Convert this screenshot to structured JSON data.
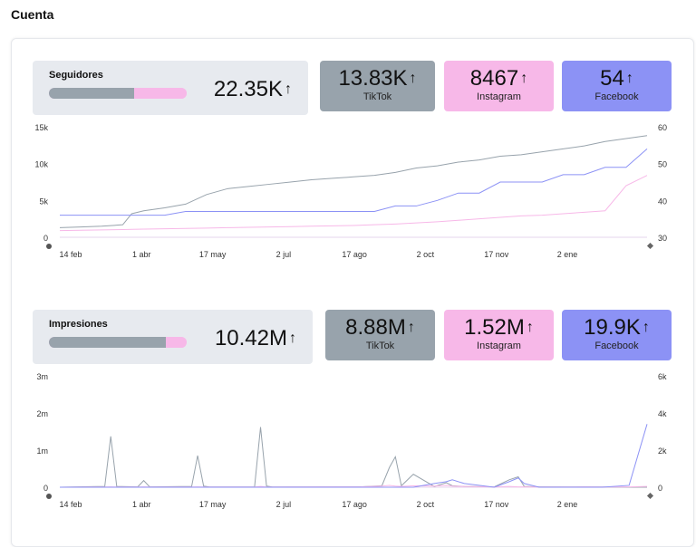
{
  "page": {
    "title": "Cuenta"
  },
  "colors": {
    "tiktok": "#98a3ac",
    "instagram": "#f7b8e8",
    "facebook": "#8c92f5",
    "panel": "#e7eaef"
  },
  "sections": [
    {
      "label": "Seguidores",
      "total": "22.35K",
      "trend_icon": "arrow-up-icon",
      "share": [
        0.62,
        0.38,
        0.0
      ],
      "tiles": [
        {
          "value": "13.83K",
          "label": "TikTok"
        },
        {
          "value": "8467",
          "label": "Instagram"
        },
        {
          "value": "54",
          "label": "Facebook"
        }
      ]
    },
    {
      "label": "Impresiones",
      "total": "10.42M",
      "trend_icon": "arrow-up-icon",
      "share": [
        0.85,
        0.15,
        0.0
      ],
      "tiles": [
        {
          "value": "8.88M",
          "label": "TikTok"
        },
        {
          "value": "1.52M",
          "label": "Instagram"
        },
        {
          "value": "19.9K",
          "label": "Facebook"
        }
      ]
    }
  ],
  "chart_data": [
    {
      "type": "line",
      "x_ticks": [
        "14 feb",
        "1 abr",
        "17 may",
        "2 jul",
        "17 ago",
        "2 oct",
        "17 nov",
        "2 ene"
      ],
      "y_left_ticks": [
        "0",
        "5k",
        "10k",
        "15k"
      ],
      "y_right_ticks": [
        "30",
        "40",
        "50",
        "60"
      ],
      "ylim_left": [
        0,
        15000
      ],
      "ylim_right": [
        30,
        60
      ],
      "x": [
        0,
        14,
        28,
        42,
        48,
        56,
        70,
        84,
        98,
        112,
        126,
        140,
        154,
        168,
        182,
        196,
        210,
        224,
        238,
        252,
        266,
        280,
        294,
        308,
        322,
        336,
        350,
        364,
        378,
        392
      ],
      "series": [
        {
          "name": "TikTok",
          "axis": "left",
          "values": [
            1300,
            1400,
            1500,
            1700,
            3200,
            3600,
            4000,
            4500,
            5800,
            6600,
            6900,
            7200,
            7500,
            7800,
            8000,
            8200,
            8400,
            8800,
            9400,
            9700,
            10200,
            10500,
            11000,
            11200,
            11600,
            12000,
            12400,
            13000,
            13400,
            13800
          ]
        },
        {
          "name": "Instagram",
          "axis": "left",
          "values": [
            900,
            950,
            1000,
            1050,
            1080,
            1100,
            1150,
            1200,
            1250,
            1300,
            1350,
            1400,
            1450,
            1500,
            1550,
            1600,
            1700,
            1800,
            1950,
            2100,
            2300,
            2500,
            2700,
            2900,
            3000,
            3200,
            3400,
            3600,
            7000,
            8400
          ]
        },
        {
          "name": "Facebook",
          "axis": "right",
          "values": [
            36,
            36,
            36,
            36,
            36,
            36,
            36,
            37,
            37,
            37,
            37,
            37,
            37,
            37,
            37,
            37,
            37,
            38.5,
            38.5,
            40,
            42,
            42,
            45,
            45,
            45,
            47,
            47,
            49,
            49,
            54
          ]
        }
      ]
    },
    {
      "type": "line",
      "x_ticks": [
        "14 feb",
        "1 abr",
        "17 may",
        "2 jul",
        "17 ago",
        "2 oct",
        "17 nov",
        "2 ene"
      ],
      "y_left_ticks": [
        "0",
        "1m",
        "2m",
        "3m"
      ],
      "y_right_ticks": [
        "0",
        "2k",
        "4k",
        "6k"
      ],
      "ylim_left": [
        0,
        3000000
      ],
      "ylim_right": [
        0,
        6000
      ],
      "x": [
        0,
        20,
        30,
        34,
        38,
        52,
        56,
        60,
        88,
        92,
        96,
        100,
        130,
        134,
        138,
        142,
        200,
        215,
        220,
        224,
        228,
        236,
        250,
        258,
        262,
        270,
        290,
        300,
        306,
        310,
        320,
        340,
        350,
        362,
        380,
        392
      ],
      "series": [
        {
          "name": "TikTok",
          "axis": "left",
          "values": [
            0,
            15000,
            20000,
            1370000,
            20000,
            10000,
            180000,
            10000,
            20000,
            850000,
            30000,
            5000,
            10000,
            1620000,
            30000,
            5000,
            10000,
            40000,
            530000,
            820000,
            40000,
            350000,
            20000,
            120000,
            40000,
            20000,
            10000,
            200000,
            280000,
            20000,
            10000,
            5000,
            10000,
            5000,
            0,
            0
          ]
        },
        {
          "name": "Instagram",
          "axis": "left",
          "values": [
            0,
            5000,
            5000,
            10000,
            5000,
            5000,
            10000,
            5000,
            5000,
            10000,
            5000,
            5000,
            5000,
            20000,
            5000,
            5000,
            10000,
            30000,
            50000,
            30000,
            20000,
            40000,
            30000,
            50000,
            30000,
            20000,
            10000,
            20000,
            10000,
            10000,
            5000,
            5000,
            10000,
            5000,
            10000,
            20000
          ]
        },
        {
          "name": "Facebook",
          "axis": "right",
          "values": [
            0,
            0,
            0,
            0,
            0,
            0,
            0,
            0,
            0,
            0,
            0,
            0,
            0,
            0,
            0,
            0,
            0,
            0,
            0,
            0,
            0,
            0,
            200,
            300,
            400,
            200,
            0,
            300,
            500,
            200,
            0,
            0,
            0,
            0,
            100,
            3400
          ]
        }
      ]
    }
  ]
}
